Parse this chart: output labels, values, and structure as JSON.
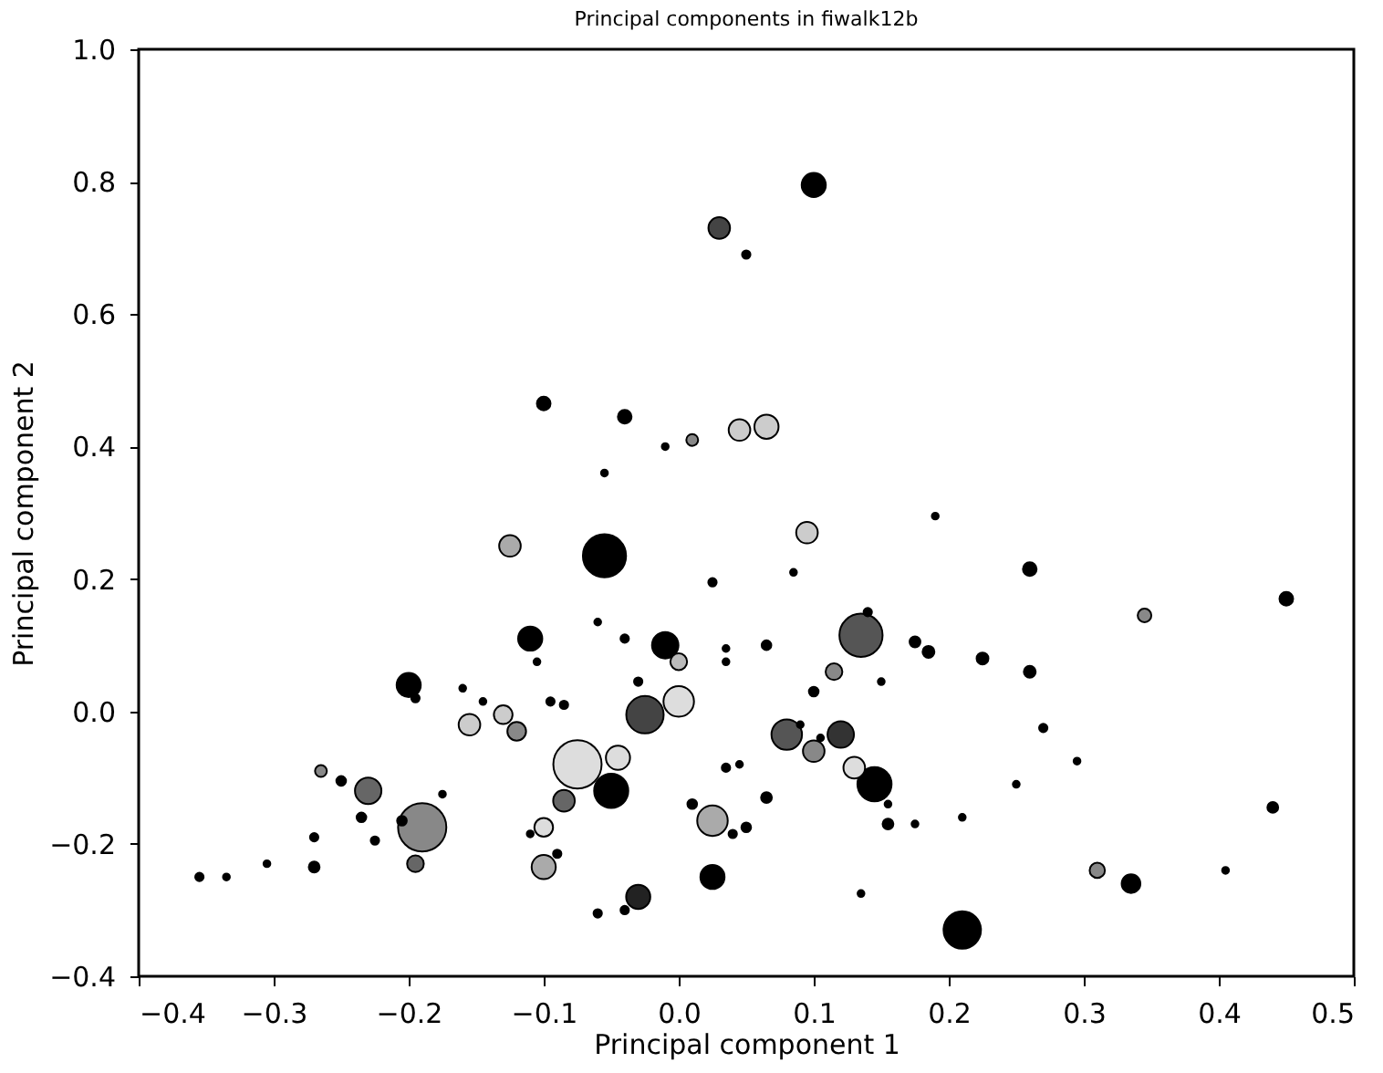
{
  "chart_data": {
    "type": "bubble",
    "title": "Principal components in fiwalk12b",
    "xlabel": "Principal component 1",
    "ylabel": "Principal component 2",
    "xlim": [
      -0.4,
      0.5
    ],
    "xticks": [
      {
        "value": -0.4,
        "label": "−0.4"
      },
      {
        "value": -0.3,
        "label": "−0.3"
      },
      {
        "value": -0.2,
        "label": "−0.2"
      },
      {
        "value": -0.1,
        "label": "−0.1"
      },
      {
        "value": 0,
        "label": "0.0"
      },
      0.1,
      0.2,
      0.3,
      0.4,
      0.5
    ],
    "ylim": [
      -0.4,
      1.0
    ],
    "yticks": [
      {
        "value": -0.4,
        "label": "−0.4"
      },
      {
        "value": -0.2,
        "label": "−0.2"
      },
      {
        "value": 0,
        "label": "0.0"
      },
      0.2,
      0.4,
      0.6,
      0.8,
      {
        "value": 1.0,
        "label": "1.0"
      }
    ],
    "grid": false,
    "series": [
      {
        "x": [
          -0.075,
          -0.19,
          -0.055,
          0.135,
          -0.025,
          0.21,
          -0.05,
          0.145,
          0.0,
          0.025,
          0.08,
          -0.23,
          0.1,
          0.03,
          0.065,
          0.045,
          0.095,
          -0.125,
          -0.045,
          -0.1,
          -0.2,
          -0.11,
          -0.01,
          0.12,
          0.1,
          0.13,
          0.025,
          -0.03,
          0.335,
          0.31,
          -0.085,
          -0.155,
          -0.13,
          -0.12,
          -0.1,
          -0.195,
          0.0,
          0.115,
          0.45,
          0.345,
          -0.1,
          -0.04,
          0.01,
          0.26,
          -0.355,
          -0.335,
          -0.305,
          -0.27,
          -0.27,
          -0.265,
          -0.25,
          -0.235,
          -0.225,
          -0.205,
          -0.195,
          -0.175,
          -0.16,
          -0.145,
          -0.105,
          -0.095,
          -0.085,
          -0.11,
          -0.09,
          -0.06,
          -0.04,
          -0.03,
          -0.06,
          -0.04,
          0.035,
          0.035,
          0.035,
          0.01,
          0.04,
          0.05,
          0.065,
          0.065,
          0.025,
          0.14,
          0.175,
          0.185,
          0.225,
          0.26,
          0.27,
          0.1,
          0.105,
          0.155,
          0.175,
          0.155,
          0.25,
          0.295,
          0.44,
          0.405,
          -0.055,
          -0.01,
          0.05,
          0.19,
          0.085,
          0.15,
          0.21,
          0.135,
          0.09,
          0.045
        ],
        "values": [
          -0.08,
          -0.175,
          0.235,
          0.115,
          -0.005,
          -0.33,
          -0.12,
          -0.11,
          0.015,
          -0.165,
          -0.035,
          -0.12,
          0.795,
          0.73,
          0.43,
          0.425,
          0.27,
          0.25,
          -0.07,
          -0.235,
          0.04,
          0.11,
          0.1,
          -0.035,
          -0.06,
          -0.085,
          -0.25,
          -0.28,
          -0.26,
          -0.24,
          -0.135,
          -0.02,
          -0.005,
          -0.03,
          -0.175,
          -0.23,
          0.075,
          0.06,
          0.17,
          0.145,
          0.465,
          0.445,
          0.41,
          0.215,
          -0.25,
          -0.25,
          -0.23,
          -0.19,
          -0.235,
          -0.09,
          -0.105,
          -0.16,
          -0.195,
          -0.165,
          0.02,
          -0.125,
          0.035,
          0.015,
          0.075,
          0.015,
          0.01,
          -0.185,
          -0.215,
          0.135,
          0.11,
          0.045,
          -0.305,
          -0.3,
          0.095,
          0.075,
          -0.085,
          -0.14,
          -0.185,
          -0.175,
          -0.13,
          0.1,
          0.195,
          0.15,
          0.105,
          0.09,
          0.08,
          0.06,
          -0.025,
          0.03,
          -0.04,
          -0.14,
          -0.17,
          -0.17,
          -0.11,
          -0.075,
          -0.145,
          -0.24,
          0.36,
          0.4,
          0.69,
          0.295,
          0.21,
          0.045,
          -0.16,
          -0.275,
          -0.02,
          -0.08
        ],
        "sizes": [
          1,
          1,
          0.8,
          0.8,
          0.6,
          0.6,
          0.5,
          0.5,
          0.4,
          0.4,
          0.4,
          0.3,
          0.25,
          0.2,
          0.25,
          0.2,
          0.2,
          0.2,
          0.25,
          0.25,
          0.25,
          0.25,
          0.3,
          0.3,
          0.2,
          0.2,
          0.25,
          0.25,
          0.15,
          0.1,
          0.2,
          0.2,
          0.15,
          0.15,
          0.15,
          0.12,
          0.12,
          0.12,
          0.08,
          0.08,
          0.08,
          0.08,
          0.06,
          0.08,
          0.03,
          0.02,
          0.02,
          0.03,
          0.05,
          0.06,
          0.04,
          0.04,
          0.03,
          0.04,
          0.03,
          0.02,
          0.02,
          0.02,
          0.02,
          0.03,
          0.03,
          0.02,
          0.03,
          0.02,
          0.03,
          0.03,
          0.03,
          0.03,
          0.02,
          0.02,
          0.03,
          0.04,
          0.03,
          0.04,
          0.05,
          0.04,
          0.03,
          0.03,
          0.05,
          0.06,
          0.06,
          0.06,
          0.03,
          0.04,
          0.02,
          0.02,
          0.02,
          0.05,
          0.02,
          0.02,
          0.05,
          0.02,
          0.02,
          0.02,
          0.03,
          0.02,
          0.02,
          0.02,
          0.02,
          0.02,
          0.02,
          0.02
        ],
        "colors": [
          "#dddddd",
          "#888888",
          "#000000",
          "#555555",
          "#444444",
          "#000000",
          "#000000",
          "#000000",
          "#dddddd",
          "#aaaaaa",
          "#555555",
          "#666666",
          "#000000",
          "#444444",
          "#cccccc",
          "#cccccc",
          "#cccccc",
          "#aaaaaa",
          "#dddddd",
          "#aaaaaa",
          "#000000",
          "#000000",
          "#000000",
          "#333333",
          "#888888",
          "#dddddd",
          "#000000",
          "#222222",
          "#000000",
          "#888888",
          "#666666",
          "#cccccc",
          "#cccccc",
          "#888888",
          "#dddddd",
          "#666666",
          "#bbbbbb",
          "#888888",
          "#000000",
          "#888888",
          "#000000",
          "#000000",
          "#888888",
          "#000000",
          "#000000",
          "#000000",
          "#000000",
          "#000000",
          "#000000",
          "#888888",
          "#000000",
          "#000000",
          "#000000",
          "#000000",
          "#000000",
          "#000000",
          "#000000",
          "#000000",
          "#000000",
          "#000000",
          "#000000",
          "#000000",
          "#000000",
          "#000000",
          "#000000",
          "#000000",
          "#000000",
          "#000000",
          "#000000",
          "#000000",
          "#000000",
          "#000000",
          "#000000",
          "#000000",
          "#000000",
          "#000000",
          "#000000",
          "#000000",
          "#000000",
          "#000000",
          "#000000",
          "#000000",
          "#000000",
          "#000000",
          "#000000",
          "#000000",
          "#000000",
          "#000000",
          "#000000",
          "#000000",
          "#000000",
          "#000000",
          "#000000",
          "#000000",
          "#000000",
          "#000000",
          "#000000",
          "#000000",
          "#000000",
          "#000000",
          "#000000",
          "#000000"
        ]
      }
    ]
  }
}
